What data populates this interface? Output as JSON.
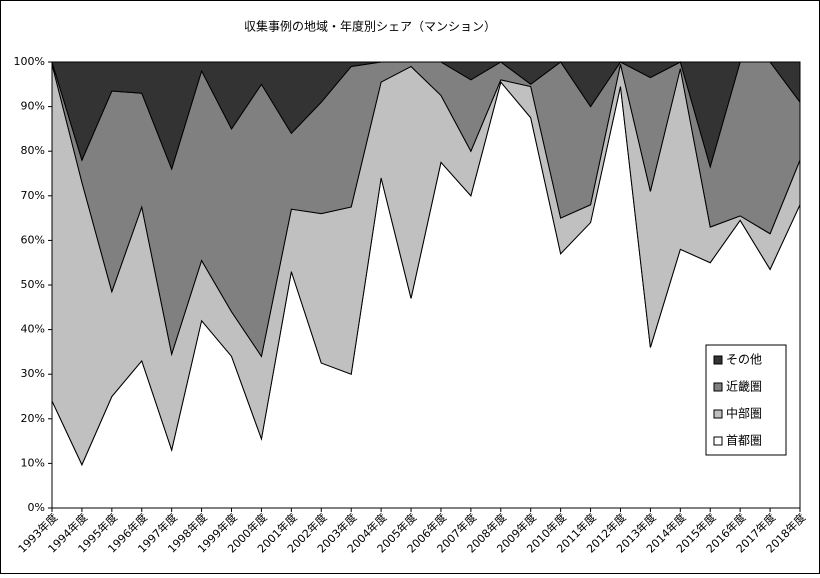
{
  "chart_data": {
    "type": "stacked-area-percent",
    "title": "収集事例の地域・年度別シェア（マンション）",
    "categories": [
      "1993年度",
      "1994年度",
      "1995年度",
      "1996年度",
      "1997年度",
      "1998年度",
      "1999年度",
      "2000年度",
      "2001年度",
      "2002年度",
      "2003年度",
      "2004年度",
      "2005年度",
      "2006年度",
      "2007年度",
      "2008年度",
      "2009年度",
      "2010年度",
      "2011年度",
      "2012年度",
      "2013年度",
      "2014年度",
      "2015年度",
      "2016年度",
      "2017年度",
      "2018年度"
    ],
    "series": [
      {
        "name": "首都圏",
        "color": "#ffffff",
        "values": [
          24,
          9.7,
          25,
          33,
          13,
          42,
          34,
          15.5,
          53,
          32.5,
          30,
          74,
          47,
          77.5,
          70,
          95.5,
          87.5,
          57,
          64,
          94.5,
          36,
          58,
          55,
          64.5,
          53.5,
          68
        ]
      },
      {
        "name": "中部圏",
        "color": "#c0c0c0",
        "values": [
          75.5,
          63.3,
          23.5,
          34.5,
          21.5,
          13.5,
          10,
          18.5,
          14,
          33.5,
          37.5,
          21.5,
          52,
          15,
          10,
          0.5,
          7,
          8,
          4,
          5,
          35,
          40.5,
          8,
          1,
          8,
          10
        ]
      },
      {
        "name": "近畿圏",
        "color": "#808080",
        "values": [
          0.5,
          5,
          45,
          25.5,
          41.5,
          42.5,
          41,
          61,
          17,
          25,
          31.5,
          4.5,
          1,
          7.5,
          16,
          4,
          0.5,
          35,
          22,
          0.5,
          25.5,
          1.5,
          13.5,
          34.5,
          38.5,
          13
        ]
      },
      {
        "name": "その他",
        "color": "#333333",
        "values": [
          0,
          22,
          6.5,
          7,
          24,
          2,
          15,
          5,
          16,
          9,
          1,
          0,
          0,
          0,
          4,
          0,
          5,
          0,
          10,
          0,
          3.5,
          0,
          23.5,
          0,
          0,
          9
        ]
      }
    ],
    "ylim": [
      0,
      100
    ],
    "yticks": [
      {
        "value": 0,
        "label": "0%"
      },
      {
        "value": 10,
        "label": "10%"
      },
      {
        "value": 20,
        "label": "20%"
      },
      {
        "value": 30,
        "label": "30%"
      },
      {
        "value": 40,
        "label": "40%"
      },
      {
        "value": 50,
        "label": "50%"
      },
      {
        "value": 60,
        "label": "60%"
      },
      {
        "value": 70,
        "label": "70%"
      },
      {
        "value": 80,
        "label": "80%"
      },
      {
        "value": 90,
        "label": "90%"
      },
      {
        "value": 100,
        "label": "100%"
      }
    ],
    "legend": "lower-right"
  }
}
